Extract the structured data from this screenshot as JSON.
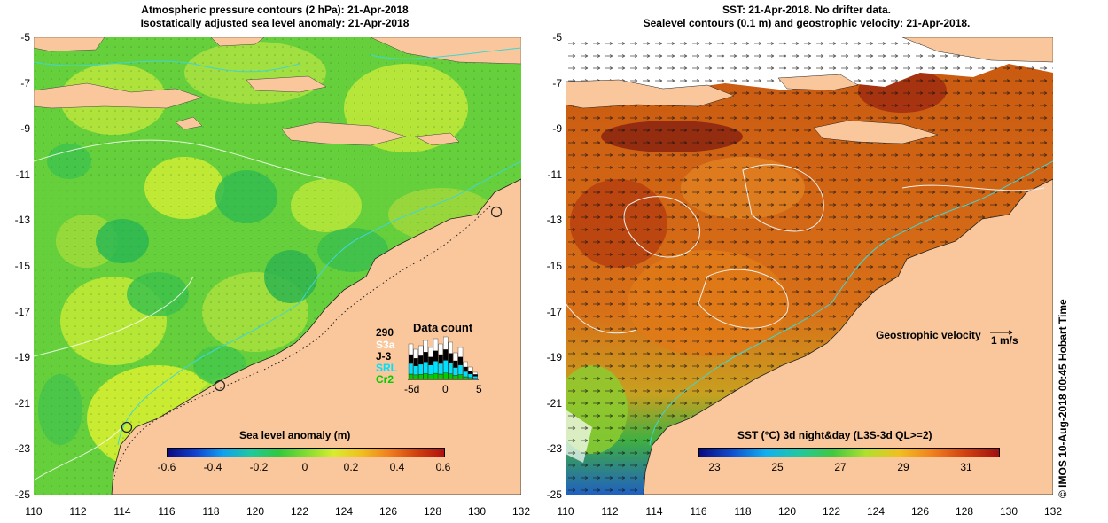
{
  "left": {
    "title_line1": "Atmospheric pressure contours (2 hPa): 21-Apr-2018",
    "title_line2": "Isostatically adjusted sea level anomaly: 21-Apr-2018",
    "colorbar_label": "Sea level anomaly (m)",
    "colorbar_ticks": [
      "-0.6",
      "-0.4",
      "-0.2",
      "0",
      "0.2",
      "0.4",
      "0.6"
    ],
    "data_count": {
      "title": "Data count",
      "total": "290",
      "missions": [
        "S3a",
        "J-3",
        "SRL",
        "Cr2"
      ],
      "mission_colors": [
        "#ffffff",
        "#000000",
        "#00e0ff",
        "#00cc00"
      ],
      "axis_ticks": [
        "-5d",
        "0",
        "5"
      ]
    }
  },
  "right": {
    "title_line1": "SST: 21-Apr-2018. No drifter data.",
    "title_line2": "Sealevel contours (0.1 m) and geostrophic velocity: 21-Apr-2018.",
    "colorbar_label": "SST (°C) 3d night&day (L3S-3d QL>=2)",
    "colorbar_ticks": [
      "23",
      "25",
      "27",
      "29",
      "31"
    ],
    "velocity_label": "Geostrophic velocity",
    "velocity_scale": "1 m/s"
  },
  "axes": {
    "y_ticks": [
      "-5",
      "-7",
      "-9",
      "-11",
      "-13",
      "-15",
      "-17",
      "-19",
      "-21",
      "-23",
      "-25"
    ],
    "x_ticks": [
      "110",
      "112",
      "114",
      "116",
      "118",
      "120",
      "122",
      "124",
      "126",
      "128",
      "130",
      "132"
    ]
  },
  "credit": "© IMOS 10-Aug-2018 00:45 Hobart Time",
  "colors": {
    "land": "#f9c79b",
    "sla_green": "#6ad43a",
    "sst_orange": "#d8701a",
    "contour_cyan": "#40d8d8"
  }
}
